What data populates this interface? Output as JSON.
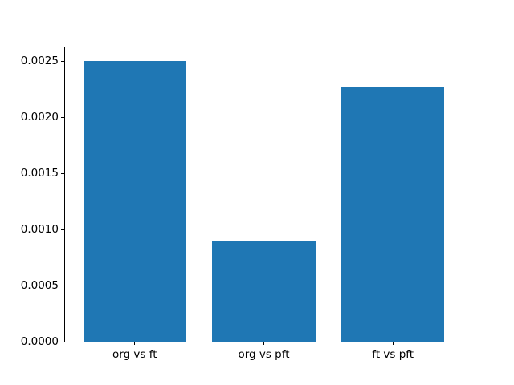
{
  "chart_data": {
    "type": "bar",
    "title": "",
    "xlabel": "",
    "ylabel": "",
    "categories": [
      "org vs ft",
      "org vs pft",
      "ft vs pft"
    ],
    "values": [
      0.0025,
      0.0009,
      0.00227
    ],
    "ylim": [
      0,
      0.002625
    ],
    "yticks": [
      0.0,
      0.0005,
      0.001,
      0.0015,
      0.002,
      0.0025
    ],
    "ytick_labels": [
      "0.0000",
      "0.0005",
      "0.0010",
      "0.0015",
      "0.0020",
      "0.0025"
    ],
    "bar_color": "#1f77b4",
    "axes_edge_color": "#000000",
    "background_color": "#ffffff",
    "grid": false,
    "legend": null
  }
}
